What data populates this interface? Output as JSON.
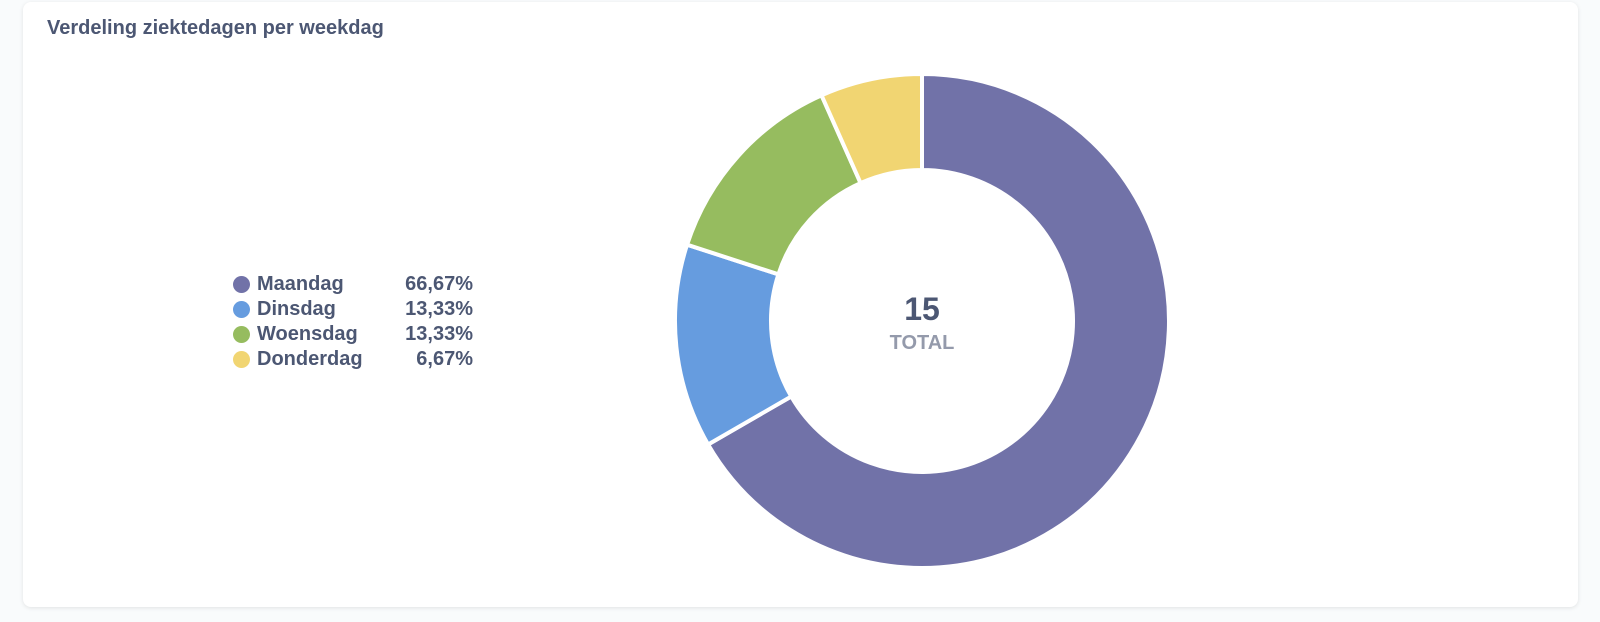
{
  "card": {
    "title": "Verdeling ziektedagen per weekdag"
  },
  "chart_data": {
    "type": "pie",
    "title": "Verdeling ziektedagen per weekdag",
    "total": "15",
    "total_label": "TOTAL",
    "legend_position": "left",
    "slices": [
      {
        "label": "Maandag",
        "value": 10,
        "percent": "66,67%",
        "color": "#7172a8"
      },
      {
        "label": "Dinsdag",
        "value": 2,
        "percent": "13,33%",
        "color": "#669cdf"
      },
      {
        "label": "Woensdag",
        "value": 2,
        "percent": "13,33%",
        "color": "#96bc5f"
      },
      {
        "label": "Donderdag",
        "value": 1,
        "percent": "6,67%",
        "color": "#f1d572"
      }
    ]
  }
}
